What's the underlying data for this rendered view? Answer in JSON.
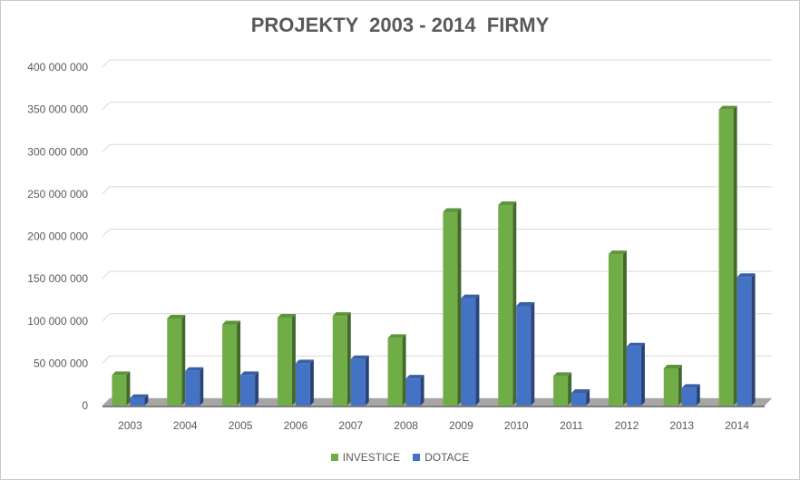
{
  "chart_data": {
    "type": "bar",
    "title": "PROJEKTY  2003 - 2014  FIRMY",
    "categories": [
      "2003",
      "2004",
      "2005",
      "2006",
      "2007",
      "2008",
      "2009",
      "2010",
      "2011",
      "2012",
      "2013",
      "2014"
    ],
    "series": [
      {
        "name": "INVESTICE",
        "color": "#70ad47",
        "values": [
          36000000,
          103000000,
          96000000,
          104000000,
          106000000,
          80000000,
          229000000,
          237000000,
          35000000,
          179000000,
          44000000,
          350000000
        ]
      },
      {
        "name": "DOTACE",
        "color": "#4472c4",
        "values": [
          9000000,
          41000000,
          36000000,
          50000000,
          55000000,
          32000000,
          127000000,
          118000000,
          15000000,
          70000000,
          21000000,
          152000000
        ]
      }
    ],
    "ylim": [
      0,
      400000000
    ],
    "yticks": [
      "0",
      "50 000 000",
      "100 000 000",
      "150 000 000",
      "200 000 000",
      "250 000 000",
      "300 000 000",
      "350 000 000",
      "400 000 000"
    ],
    "ytick_values": [
      0,
      50000000,
      100000000,
      150000000,
      200000000,
      250000000,
      300000000,
      350000000,
      400000000
    ],
    "grid": true,
    "legend_position": "bottom"
  }
}
